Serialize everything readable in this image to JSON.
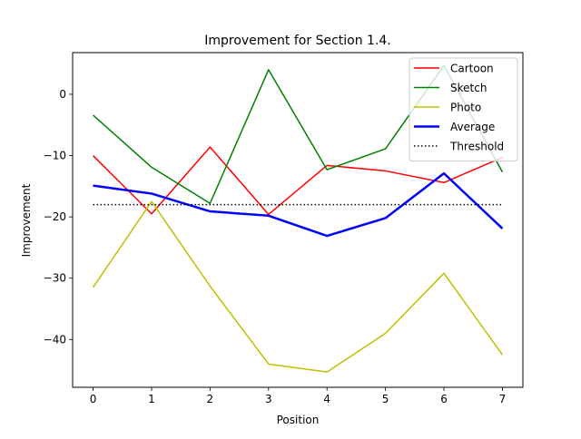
{
  "chart_data": {
    "type": "line",
    "title": "Improvement for Section 1.4.",
    "xlabel": "Position",
    "ylabel": "Improvement",
    "x": [
      0,
      1,
      2,
      3,
      4,
      5,
      6,
      7
    ],
    "xlim": [
      -0.35,
      7.35
    ],
    "ylim": [
      -47.8,
      6.8
    ],
    "xticks": [
      0,
      1,
      2,
      3,
      4,
      5,
      6,
      7
    ],
    "yticks": [
      -40,
      -30,
      -20,
      -10,
      0
    ],
    "ytick_labels": [
      "−40",
      "−30",
      "−20",
      "−10",
      "0"
    ],
    "grid": false,
    "legend_position": "top-right",
    "series": [
      {
        "name": "Cartoon",
        "color": "#ff0000",
        "style": "solid",
        "width": 1.5,
        "values": [
          -10.0,
          -19.5,
          -8.6,
          -19.6,
          -11.6,
          -12.5,
          -14.4,
          -10.3
        ]
      },
      {
        "name": "Sketch",
        "color": "#008000",
        "style": "solid",
        "width": 1.5,
        "values": [
          -3.4,
          -11.9,
          -17.8,
          4.0,
          -12.3,
          -8.9,
          4.7,
          -12.7
        ]
      },
      {
        "name": "Photo",
        "color": "#bfbf00",
        "style": "solid",
        "width": 1.5,
        "values": [
          -31.5,
          -17.5,
          -31.3,
          -44.0,
          -45.3,
          -39.0,
          -29.2,
          -42.5
        ]
      },
      {
        "name": "Average",
        "color": "#0000ff",
        "style": "solid",
        "width": 2.5,
        "values": [
          -14.9,
          -16.2,
          -19.1,
          -19.8,
          -23.1,
          -20.2,
          -12.9,
          -21.9
        ]
      },
      {
        "name": "Threshold",
        "color": "#000000",
        "style": "dotted",
        "width": 1.5,
        "values": [
          -18.0,
          -18.0,
          -18.0,
          -18.0,
          -18.0,
          -18.0,
          -18.0,
          -18.0
        ]
      }
    ]
  }
}
